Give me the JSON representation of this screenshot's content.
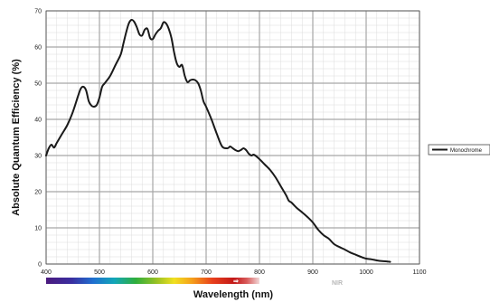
{
  "chart_data": {
    "type": "line",
    "title": "",
    "xlabel": "Wavelength (nm)",
    "ylabel": "Absolute Quantum Efficiency (%)",
    "xlim": [
      400,
      1100
    ],
    "ylim": [
      0,
      70
    ],
    "x_ticks": [
      400,
      500,
      600,
      700,
      800,
      900,
      1000,
      1100
    ],
    "y_ticks": [
      0,
      10,
      20,
      30,
      40,
      50,
      60,
      70
    ],
    "grid": true,
    "legend_position": "right",
    "spectrum_bar_label": "NIR",
    "spectrum_arrow_glyph": "⇒",
    "series": [
      {
        "name": "Monochrome",
        "color": "#1a1a1a",
        "points": [
          [
            400,
            30
          ],
          [
            405,
            32
          ],
          [
            410,
            33
          ],
          [
            415,
            32.2
          ],
          [
            420,
            33.5
          ],
          [
            430,
            36
          ],
          [
            440,
            38.5
          ],
          [
            450,
            42
          ],
          [
            460,
            46.5
          ],
          [
            465,
            48.5
          ],
          [
            470,
            49
          ],
          [
            475,
            48
          ],
          [
            480,
            45
          ],
          [
            485,
            43.8
          ],
          [
            490,
            43.5
          ],
          [
            495,
            44
          ],
          [
            500,
            46
          ],
          [
            505,
            49
          ],
          [
            510,
            50
          ],
          [
            520,
            52
          ],
          [
            530,
            55
          ],
          [
            540,
            58
          ],
          [
            545,
            61
          ],
          [
            550,
            64
          ],
          [
            555,
            66.5
          ],
          [
            560,
            67.5
          ],
          [
            565,
            67
          ],
          [
            570,
            65.5
          ],
          [
            575,
            63.5
          ],
          [
            580,
            63.2
          ],
          [
            585,
            64.8
          ],
          [
            590,
            65
          ],
          [
            595,
            62.5
          ],
          [
            600,
            62.2
          ],
          [
            605,
            63.5
          ],
          [
            610,
            64.5
          ],
          [
            615,
            65.2
          ],
          [
            620,
            66.8
          ],
          [
            625,
            66.5
          ],
          [
            630,
            65
          ],
          [
            635,
            62.5
          ],
          [
            640,
            58.5
          ],
          [
            645,
            55.5
          ],
          [
            650,
            54.5
          ],
          [
            655,
            55
          ],
          [
            660,
            52
          ],
          [
            665,
            50.3
          ],
          [
            670,
            50.8
          ],
          [
            675,
            51
          ],
          [
            680,
            50.8
          ],
          [
            685,
            50
          ],
          [
            690,
            48
          ],
          [
            695,
            45
          ],
          [
            700,
            43.5
          ],
          [
            710,
            40
          ],
          [
            720,
            36
          ],
          [
            730,
            32.5
          ],
          [
            740,
            32
          ],
          [
            745,
            32.5
          ],
          [
            750,
            32
          ],
          [
            755,
            31.5
          ],
          [
            760,
            31.2
          ],
          [
            765,
            31.5
          ],
          [
            770,
            32
          ],
          [
            775,
            31.5
          ],
          [
            780,
            30.5
          ],
          [
            785,
            30
          ],
          [
            790,
            30.2
          ],
          [
            800,
            29
          ],
          [
            810,
            27.5
          ],
          [
            820,
            26
          ],
          [
            830,
            24
          ],
          [
            840,
            21.5
          ],
          [
            850,
            19
          ],
          [
            855,
            17.5
          ],
          [
            860,
            17
          ],
          [
            870,
            15.5
          ],
          [
            880,
            14.3
          ],
          [
            890,
            13
          ],
          [
            900,
            11.5
          ],
          [
            910,
            9.5
          ],
          [
            920,
            8
          ],
          [
            930,
            7
          ],
          [
            940,
            5.5
          ],
          [
            950,
            4.7
          ],
          [
            960,
            4
          ],
          [
            970,
            3.2
          ],
          [
            980,
            2.6
          ],
          [
            990,
            2
          ],
          [
            1000,
            1.5
          ],
          [
            1010,
            1.3
          ],
          [
            1020,
            1
          ],
          [
            1030,
            0.8
          ],
          [
            1040,
            0.7
          ],
          [
            1045,
            0.6
          ]
        ]
      }
    ]
  }
}
